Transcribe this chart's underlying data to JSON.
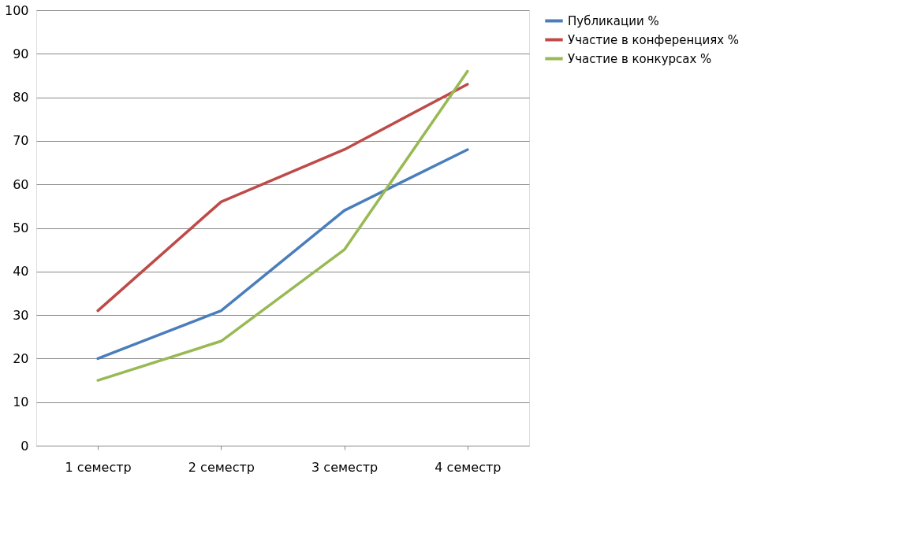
{
  "chart_data": {
    "type": "line",
    "categories": [
      "1 семестр",
      "2 семестр",
      "3 семестр",
      "4 семестр"
    ],
    "series": [
      {
        "name": "Публикации %",
        "color": "#4a7ebb",
        "values": [
          20,
          31,
          54,
          68
        ]
      },
      {
        "name": "Участие в конференциях %",
        "color": "#be4b48",
        "values": [
          31,
          56,
          68,
          83
        ]
      },
      {
        "name": "Участие в конкурсах %",
        "color": "#98b954",
        "values": [
          15,
          24,
          45,
          86
        ]
      }
    ],
    "ylim": [
      0,
      100
    ],
    "yticks": [
      0,
      10,
      20,
      30,
      40,
      50,
      60,
      70,
      80,
      90,
      100
    ],
    "grid": "y",
    "legend": "right",
    "marker": "none",
    "line_style": "solid"
  }
}
